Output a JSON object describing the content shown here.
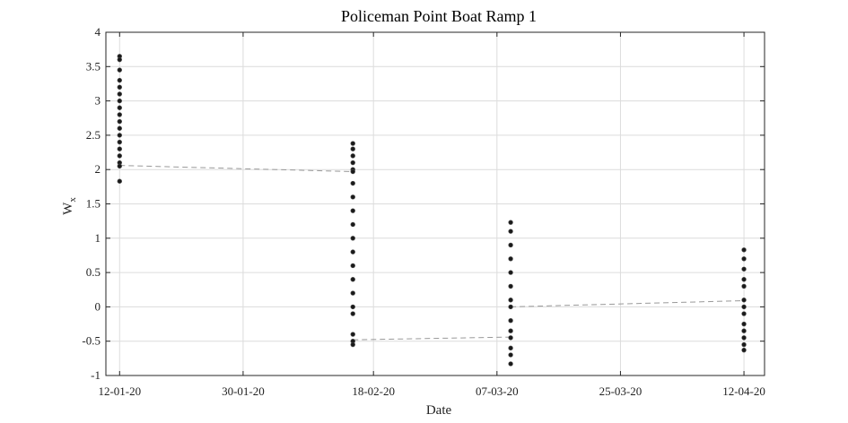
{
  "chart_data": {
    "type": "scatter",
    "title": "Policeman Point Boat Ramp 1",
    "xlabel": "Date",
    "ylabel_main": "W",
    "ylabel_sub": "x",
    "x_axis_type": "date",
    "xlim": [
      "2020-01-10",
      "2020-04-15"
    ],
    "ylim": [
      -1,
      4
    ],
    "grid": true,
    "x_ticks": [
      {
        "date": "2020-01-12",
        "label": "12-01-20"
      },
      {
        "date": "2020-01-30",
        "label": "30-01-20"
      },
      {
        "date": "2020-02-18",
        "label": "18-02-20"
      },
      {
        "date": "2020-03-07",
        "label": "07-03-20"
      },
      {
        "date": "2020-03-25",
        "label": "25-03-20"
      },
      {
        "date": "2020-04-12",
        "label": "12-04-20"
      }
    ],
    "y_ticks": [
      {
        "value": 4,
        "label": "4"
      },
      {
        "value": 3.5,
        "label": "3.5"
      },
      {
        "value": 3,
        "label": "3"
      },
      {
        "value": 2.5,
        "label": "2.5"
      },
      {
        "value": 2,
        "label": "2"
      },
      {
        "value": 1.5,
        "label": "1.5"
      },
      {
        "value": 1,
        "label": "1"
      },
      {
        "value": 0.5,
        "label": "0.5"
      },
      {
        "value": 0,
        "label": "0"
      },
      {
        "value": -0.5,
        "label": "-0.5"
      },
      {
        "value": -1,
        "label": "-1"
      }
    ],
    "series": [
      {
        "marker_color": "#1a1a1a",
        "points": [
          {
            "x": "2020-01-12",
            "y": 3.65
          },
          {
            "x": "2020-01-12",
            "y": 3.6
          },
          {
            "x": "2020-01-12",
            "y": 3.45
          },
          {
            "x": "2020-01-12",
            "y": 3.3
          },
          {
            "x": "2020-01-12",
            "y": 3.2
          },
          {
            "x": "2020-01-12",
            "y": 3.1
          },
          {
            "x": "2020-01-12",
            "y": 3.0
          },
          {
            "x": "2020-01-12",
            "y": 2.9
          },
          {
            "x": "2020-01-12",
            "y": 2.8
          },
          {
            "x": "2020-01-12",
            "y": 2.7
          },
          {
            "x": "2020-01-12",
            "y": 2.6
          },
          {
            "x": "2020-01-12",
            "y": 2.5
          },
          {
            "x": "2020-01-12",
            "y": 2.4
          },
          {
            "x": "2020-01-12",
            "y": 2.3
          },
          {
            "x": "2020-01-12",
            "y": 2.2
          },
          {
            "x": "2020-01-12",
            "y": 2.1
          },
          {
            "x": "2020-01-12",
            "y": 2.05
          },
          {
            "x": "2020-01-12",
            "y": 1.83
          },
          {
            "x": "2020-02-15",
            "y": 2.38
          },
          {
            "x": "2020-02-15",
            "y": 2.3
          },
          {
            "x": "2020-02-15",
            "y": 2.2
          },
          {
            "x": "2020-02-15",
            "y": 2.1
          },
          {
            "x": "2020-02-15",
            "y": 2.0
          },
          {
            "x": "2020-02-15",
            "y": 1.97
          },
          {
            "x": "2020-02-15",
            "y": 1.8
          },
          {
            "x": "2020-02-15",
            "y": 1.6
          },
          {
            "x": "2020-02-15",
            "y": 1.4
          },
          {
            "x": "2020-02-15",
            "y": 1.2
          },
          {
            "x": "2020-02-15",
            "y": 1.0
          },
          {
            "x": "2020-02-15",
            "y": 0.8
          },
          {
            "x": "2020-02-15",
            "y": 0.6
          },
          {
            "x": "2020-02-15",
            "y": 0.4
          },
          {
            "x": "2020-02-15",
            "y": 0.2
          },
          {
            "x": "2020-02-15",
            "y": 0.0
          },
          {
            "x": "2020-02-15",
            "y": -0.1
          },
          {
            "x": "2020-02-15",
            "y": -0.4
          },
          {
            "x": "2020-02-15",
            "y": -0.5
          },
          {
            "x": "2020-02-15",
            "y": -0.55
          },
          {
            "x": "2020-03-09",
            "y": 1.23
          },
          {
            "x": "2020-03-09",
            "y": 1.1
          },
          {
            "x": "2020-03-09",
            "y": 0.9
          },
          {
            "x": "2020-03-09",
            "y": 0.7
          },
          {
            "x": "2020-03-09",
            "y": 0.5
          },
          {
            "x": "2020-03-09",
            "y": 0.3
          },
          {
            "x": "2020-03-09",
            "y": 0.1
          },
          {
            "x": "2020-03-09",
            "y": 0.0
          },
          {
            "x": "2020-03-09",
            "y": -0.2
          },
          {
            "x": "2020-03-09",
            "y": -0.35
          },
          {
            "x": "2020-03-09",
            "y": -0.45
          },
          {
            "x": "2020-03-09",
            "y": -0.6
          },
          {
            "x": "2020-03-09",
            "y": -0.7
          },
          {
            "x": "2020-03-09",
            "y": -0.83
          },
          {
            "x": "2020-04-12",
            "y": 0.83
          },
          {
            "x": "2020-04-12",
            "y": 0.7
          },
          {
            "x": "2020-04-12",
            "y": 0.55
          },
          {
            "x": "2020-04-12",
            "y": 0.4
          },
          {
            "x": "2020-04-12",
            "y": 0.3
          },
          {
            "x": "2020-04-12",
            "y": 0.1
          },
          {
            "x": "2020-04-12",
            "y": 0.0
          },
          {
            "x": "2020-04-12",
            "y": -0.1
          },
          {
            "x": "2020-04-12",
            "y": -0.25
          },
          {
            "x": "2020-04-12",
            "y": -0.35
          },
          {
            "x": "2020-04-12",
            "y": -0.45
          },
          {
            "x": "2020-04-12",
            "y": -0.55
          },
          {
            "x": "2020-04-12",
            "y": -0.63
          }
        ]
      },
      {
        "type": "line",
        "style": "dashed",
        "color": "#999999",
        "segments": [
          [
            {
              "x": "2020-01-12",
              "y": 2.06
            },
            {
              "x": "2020-02-15",
              "y": 1.97
            }
          ],
          [
            {
              "x": "2020-02-15",
              "y": -0.48
            },
            {
              "x": "2020-03-09",
              "y": -0.44
            }
          ],
          [
            {
              "x": "2020-03-09",
              "y": 0.0
            },
            {
              "x": "2020-04-12",
              "y": 0.09
            }
          ]
        ]
      }
    ]
  }
}
